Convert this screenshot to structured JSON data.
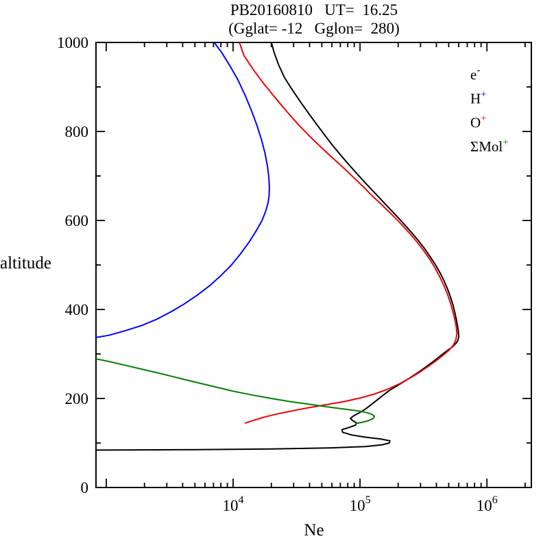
{
  "chart_data": {
    "type": "line",
    "title": "PB20160810   UT=  16.25",
    "subtitle": "(Gglat= -12   Gglon=  280)",
    "xlabel": "Ne",
    "ylabel": "altitude",
    "x_axis": {
      "scale": "log",
      "min": 830,
      "max": 2240000,
      "tick_exponents": [
        4,
        5,
        6
      ]
    },
    "y_axis": {
      "scale": "linear",
      "min": 0,
      "max": 1000,
      "major_ticks": [
        0,
        200,
        400,
        600,
        800,
        1000
      ],
      "minor_step": 100
    },
    "legend_position": "top-right-inside",
    "series": [
      {
        "name": "electron-density",
        "label_base": "e",
        "label_sup": "-",
        "color": "#000000",
        "points": [
          [
            830,
            84
          ],
          [
            5000,
            85
          ],
          [
            20000,
            86.5
          ],
          [
            60000,
            89
          ],
          [
            110000,
            92
          ],
          [
            150000,
            96
          ],
          [
            170000,
            100
          ],
          [
            172000,
            105
          ],
          [
            145000,
            109
          ],
          [
            110000,
            113
          ],
          [
            86000,
            118
          ],
          [
            73000,
            124
          ],
          [
            72000,
            130
          ],
          [
            82000,
            135
          ],
          [
            92000,
            140
          ],
          [
            94000,
            145
          ],
          [
            88000,
            150
          ],
          [
            84000,
            155
          ],
          [
            89000,
            161
          ],
          [
            99000,
            168
          ],
          [
            110000,
            176
          ],
          [
            121000,
            185
          ],
          [
            134000,
            195
          ],
          [
            150000,
            206
          ],
          [
            170000,
            218
          ],
          [
            200000,
            230
          ],
          [
            240000,
            244
          ],
          [
            285000,
            258
          ],
          [
            335000,
            272
          ],
          [
            390000,
            286
          ],
          [
            445000,
            299
          ],
          [
            495000,
            309
          ],
          [
            540000,
            317
          ],
          [
            575000,
            325
          ],
          [
            592000,
            331
          ],
          [
            600000,
            339
          ],
          [
            596000,
            350
          ],
          [
            588000,
            362
          ],
          [
            576000,
            376
          ],
          [
            560000,
            392
          ],
          [
            540000,
            410
          ],
          [
            516000,
            428
          ],
          [
            490000,
            446
          ],
          [
            460000,
            464
          ],
          [
            428000,
            482
          ],
          [
            394000,
            500
          ],
          [
            358000,
            518
          ],
          [
            322000,
            537
          ],
          [
            286000,
            556
          ],
          [
            251000,
            575
          ],
          [
            219000,
            594
          ],
          [
            190000,
            613
          ],
          [
            164000,
            632
          ],
          [
            141000,
            652
          ],
          [
            121000,
            672
          ],
          [
            104000,
            692
          ],
          [
            90000,
            712
          ],
          [
            78000,
            732
          ],
          [
            68000,
            752
          ],
          [
            59500,
            772
          ],
          [
            52000,
            794
          ],
          [
            45500,
            816
          ],
          [
            39500,
            840
          ],
          [
            34000,
            866
          ],
          [
            29500,
            892
          ],
          [
            25500,
            920
          ],
          [
            22800,
            950
          ],
          [
            21000,
            978
          ],
          [
            20000,
            1000
          ]
        ]
      },
      {
        "name": "hydrogen-ion",
        "label_base": "H",
        "label_sup": "+",
        "color": "#0000ff",
        "points": [
          [
            830,
            337
          ],
          [
            1050,
            342
          ],
          [
            1400,
            352
          ],
          [
            1900,
            364
          ],
          [
            2500,
            378
          ],
          [
            3200,
            394
          ],
          [
            4100,
            412
          ],
          [
            5200,
            432
          ],
          [
            6500,
            453
          ],
          [
            8000,
            476
          ],
          [
            9700,
            500
          ],
          [
            11500,
            526
          ],
          [
            13400,
            552
          ],
          [
            15300,
            578
          ],
          [
            16900,
            600
          ],
          [
            18000,
            620
          ],
          [
            18800,
            638
          ],
          [
            19200,
            656
          ],
          [
            19300,
            674
          ],
          [
            19100,
            698
          ],
          [
            18600,
            724
          ],
          [
            17800,
            752
          ],
          [
            16700,
            782
          ],
          [
            15400,
            814
          ],
          [
            13900,
            848
          ],
          [
            12400,
            882
          ],
          [
            10900,
            916
          ],
          [
            9400,
            948
          ],
          [
            8100,
            978
          ],
          [
            7100,
            1000
          ]
        ]
      },
      {
        "name": "oxygen-ion",
        "label_base": "O",
        "label_sup": "+",
        "color": "#ee0000",
        "points": [
          [
            12500,
            145
          ],
          [
            14500,
            151
          ],
          [
            17500,
            158
          ],
          [
            22000,
            165
          ],
          [
            29000,
            172
          ],
          [
            39000,
            179
          ],
          [
            54000,
            186
          ],
          [
            75000,
            193
          ],
          [
            100000,
            201
          ],
          [
            130000,
            210
          ],
          [
            165000,
            221
          ],
          [
            205000,
            233
          ],
          [
            248000,
            246
          ],
          [
            295000,
            259
          ],
          [
            345000,
            272
          ],
          [
            398000,
            285
          ],
          [
            450000,
            297
          ],
          [
            500000,
            308
          ],
          [
            545000,
            320
          ],
          [
            570000,
            332
          ],
          [
            580000,
            346
          ],
          [
            574000,
            360
          ],
          [
            560000,
            376
          ],
          [
            540000,
            394
          ],
          [
            517000,
            414
          ],
          [
            489000,
            434
          ],
          [
            458000,
            454
          ],
          [
            424000,
            474
          ],
          [
            389000,
            494
          ],
          [
            352000,
            514
          ],
          [
            314000,
            534
          ],
          [
            277000,
            554
          ],
          [
            241000,
            574
          ],
          [
            208000,
            594
          ],
          [
            177000,
            614
          ],
          [
            150000,
            634
          ],
          [
            126000,
            654
          ],
          [
            106000,
            676
          ],
          [
            88000,
            698
          ],
          [
            73000,
            720
          ],
          [
            60000,
            742
          ],
          [
            49500,
            764
          ],
          [
            40500,
            788
          ],
          [
            33000,
            814
          ],
          [
            27000,
            842
          ],
          [
            22000,
            872
          ],
          [
            17800,
            904
          ],
          [
            14500,
            938
          ],
          [
            12200,
            970
          ],
          [
            11200,
            1000
          ]
        ]
      },
      {
        "name": "molecular-ions-sum",
        "label_base": "ΣMol",
        "label_sup": "+",
        "color": "#008000",
        "points": [
          [
            830,
            289
          ],
          [
            1050,
            283
          ],
          [
            1400,
            275
          ],
          [
            1900,
            266
          ],
          [
            2600,
            257
          ],
          [
            3600,
            247
          ],
          [
            5000,
            237
          ],
          [
            7000,
            227
          ],
          [
            9800,
            217
          ],
          [
            14000,
            208
          ],
          [
            20000,
            200
          ],
          [
            28000,
            193
          ],
          [
            40000,
            187
          ],
          [
            56000,
            181
          ],
          [
            76000,
            176
          ],
          [
            97000,
            172
          ],
          [
            114000,
            168
          ],
          [
            125000,
            164
          ],
          [
            130000,
            160
          ],
          [
            127000,
            155
          ],
          [
            116000,
            150
          ],
          [
            102000,
            146
          ],
          [
            94000,
            144
          ]
        ]
      }
    ]
  }
}
